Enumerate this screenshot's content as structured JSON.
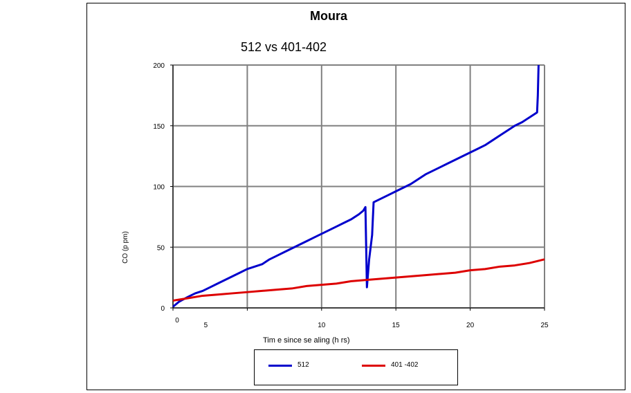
{
  "chart_data": {
    "type": "line",
    "title": "Moura",
    "subtitle": "512 vs 401-402",
    "xlabel": "Tim e since se aling (h rs)",
    "ylabel": "CO (p pm)",
    "xlim": [
      0,
      25
    ],
    "ylim": [
      0,
      200
    ],
    "x_ticks": [
      "0",
      "5",
      "10",
      "15",
      "20",
      "25"
    ],
    "y_ticks": [
      "0",
      "50",
      "100",
      "150",
      "200"
    ],
    "grid": true,
    "legend_position": "bottom",
    "series": [
      {
        "name": "512",
        "color": "#0000cc",
        "x": [
          0,
          0.4,
          1,
          1.5,
          2,
          2.5,
          3,
          3.5,
          4,
          4.5,
          5,
          5.5,
          6,
          6.5,
          7,
          7.5,
          8,
          8.5,
          9,
          9.5,
          10,
          10.5,
          11,
          11.5,
          12,
          12.5,
          12.8,
          12.95,
          13.05,
          13.2,
          13.4,
          13.5,
          14,
          14.5,
          15,
          15.5,
          16,
          16.5,
          17,
          17.5,
          18,
          18.5,
          19,
          19.5,
          20,
          20.5,
          21,
          21.5,
          22,
          22.5,
          23,
          23.5,
          24,
          24.5,
          24.55,
          24.6
        ],
        "y": [
          1,
          5,
          9,
          12,
          14,
          17,
          20,
          23,
          26,
          29,
          32,
          34,
          36,
          40,
          43,
          46,
          49,
          52,
          55,
          58,
          61,
          64,
          67,
          70,
          73,
          77,
          80,
          83,
          17,
          40,
          60,
          87,
          90,
          93,
          96,
          99,
          102,
          106,
          110,
          113,
          116,
          119,
          122,
          125,
          128,
          131,
          134,
          138,
          142,
          146,
          150,
          153,
          157,
          161,
          175,
          200
        ]
      },
      {
        "name": "401 -402",
        "color": "#dd0000",
        "x": [
          0,
          0.5,
          1,
          2,
          3,
          4,
          5,
          6,
          7,
          8,
          9,
          10,
          11,
          12,
          13,
          14,
          15,
          16,
          17,
          18,
          19,
          20,
          21,
          22,
          23,
          24,
          25
        ],
        "y": [
          6,
          7,
          8,
          10,
          11,
          12,
          13,
          14,
          15,
          16,
          18,
          19,
          20,
          22,
          23,
          24,
          25,
          26,
          27,
          28,
          29,
          31,
          32,
          34,
          35,
          37,
          40
        ]
      }
    ]
  }
}
